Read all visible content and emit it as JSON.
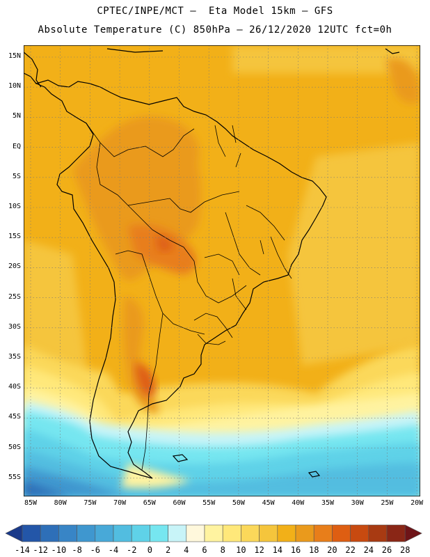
{
  "header": {
    "line1": "CPTEC/INPE/MCT –  Eta Model 15km – GFS",
    "line2": "Absolute Temperature (C) 850hPa – 26/12/2020 12UTC fct=0h"
  },
  "map": {
    "region": "South America",
    "lat_labels": [
      "15N",
      "10N",
      "5N",
      "EQ",
      "5S",
      "10S",
      "15S",
      "20S",
      "25S",
      "30S",
      "35S",
      "40S",
      "45S",
      "50S",
      "55S"
    ],
    "lon_labels": [
      "85W",
      "80W",
      "75W",
      "70W",
      "65W",
      "60W",
      "55W",
      "50W",
      "45W",
      "40W",
      "35W",
      "30W",
      "25W",
      "20W"
    ]
  },
  "colorbar": {
    "labels": [
      "-14",
      "-12",
      "-10",
      "-8",
      "-6",
      "-4",
      "-2",
      "0",
      "2",
      "4",
      "6",
      "8",
      "10",
      "12",
      "14",
      "16",
      "18",
      "20",
      "22",
      "24",
      "26",
      "28"
    ],
    "colors": [
      "#1a3a8a",
      "#2356a8",
      "#2e6fb8",
      "#3885c6",
      "#3f97cf",
      "#48a9d8",
      "#52bde0",
      "#5fd2e8",
      "#76e6f0",
      "#c8f4f8",
      "#fff8dc",
      "#fff3a0",
      "#ffe87a",
      "#fbd85a",
      "#f5c53c",
      "#f2b018",
      "#ea9a1c",
      "#e87e1a",
      "#de5e12",
      "#c84a10",
      "#a83a12",
      "#8a2616",
      "#6e1418"
    ]
  }
}
